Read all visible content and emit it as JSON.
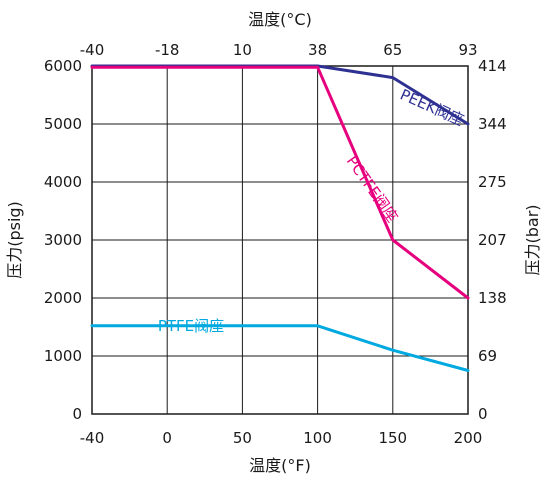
{
  "chart_data": {
    "type": "line",
    "x_bottom": {
      "label": "温度(°F)",
      "range": [
        -40,
        200
      ],
      "ticks": [
        -40,
        0,
        50,
        100,
        150,
        200
      ]
    },
    "x_top": {
      "label": "温度(°C)",
      "ticks": [
        -40,
        -18,
        10,
        38,
        65,
        93
      ]
    },
    "y_left": {
      "label": "压力(psig)",
      "range": [
        0,
        6000
      ],
      "ticks": [
        0,
        1000,
        2000,
        3000,
        4000,
        5000,
        6000
      ]
    },
    "y_right": {
      "label": "压力(bar)",
      "ticks": [
        0,
        69,
        138,
        207,
        275,
        344,
        414
      ]
    },
    "grid": true,
    "series": [
      {
        "name": "PEEK阀座",
        "color": "#2e3192",
        "x": [
          -40,
          100,
          150,
          200
        ],
        "y": [
          6000,
          6000,
          5800,
          5000
        ]
      },
      {
        "name": "PCTFE阀座",
        "color": "#e6007e",
        "x": [
          -40,
          100,
          150,
          200
        ],
        "y": [
          5980,
          5980,
          3000,
          2000
        ]
      },
      {
        "name": "PTFE阀座",
        "color": "#00a9e0",
        "x": [
          -40,
          100,
          150,
          200
        ],
        "y": [
          1520,
          1520,
          1100,
          750
        ]
      }
    ]
  }
}
